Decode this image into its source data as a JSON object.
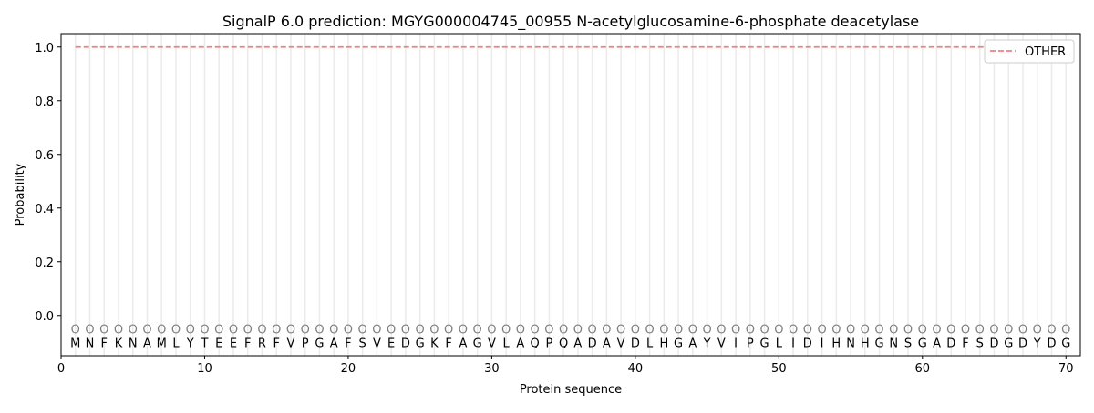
{
  "chart_data": {
    "type": "line",
    "title": "SignalP 6.0 prediction: MGYG000004745_00955 N-acetylglucosamine-6-phosphate deacetylase",
    "xlabel": "Protein sequence",
    "ylabel": "Probability",
    "xlim": [
      0,
      71
    ],
    "ylim": [
      -0.15,
      1.05
    ],
    "xticks": [
      0,
      10,
      20,
      30,
      40,
      50,
      60,
      70
    ],
    "yticks": [
      0.0,
      0.2,
      0.4,
      0.6,
      0.8,
      1.0
    ],
    "ytick_labels": [
      "0.0",
      "0.2",
      "0.4",
      "0.6",
      "0.8",
      "1.0"
    ],
    "grid": "vertical per residue",
    "legend": {
      "placement": "top-right",
      "entries": [
        "OTHER"
      ]
    },
    "sequence": [
      "M",
      "N",
      "F",
      "K",
      "N",
      "A",
      "M",
      "L",
      "Y",
      "T",
      "E",
      "E",
      "F",
      "R",
      "F",
      "V",
      "P",
      "G",
      "A",
      "F",
      "S",
      "V",
      "E",
      "D",
      "G",
      "K",
      "F",
      "A",
      "G",
      "V",
      "L",
      "A",
      "Q",
      "P",
      "Q",
      "A",
      "D",
      "A",
      "V",
      "D",
      "L",
      "H",
      "G",
      "A",
      "Y",
      "V",
      "I",
      "P",
      "G",
      "L",
      "I",
      "D",
      "I",
      "H",
      "N",
      "H",
      "G",
      "N",
      "S",
      "G",
      "A",
      "D",
      "F",
      "S",
      "D",
      "G",
      "D",
      "Y",
      "D",
      "G"
    ],
    "predicted_label": "O",
    "series": [
      {
        "name": "OTHER",
        "color": "#f08080",
        "style": "dashed",
        "x_range": [
          1,
          70
        ],
        "value": 1.0
      }
    ]
  }
}
